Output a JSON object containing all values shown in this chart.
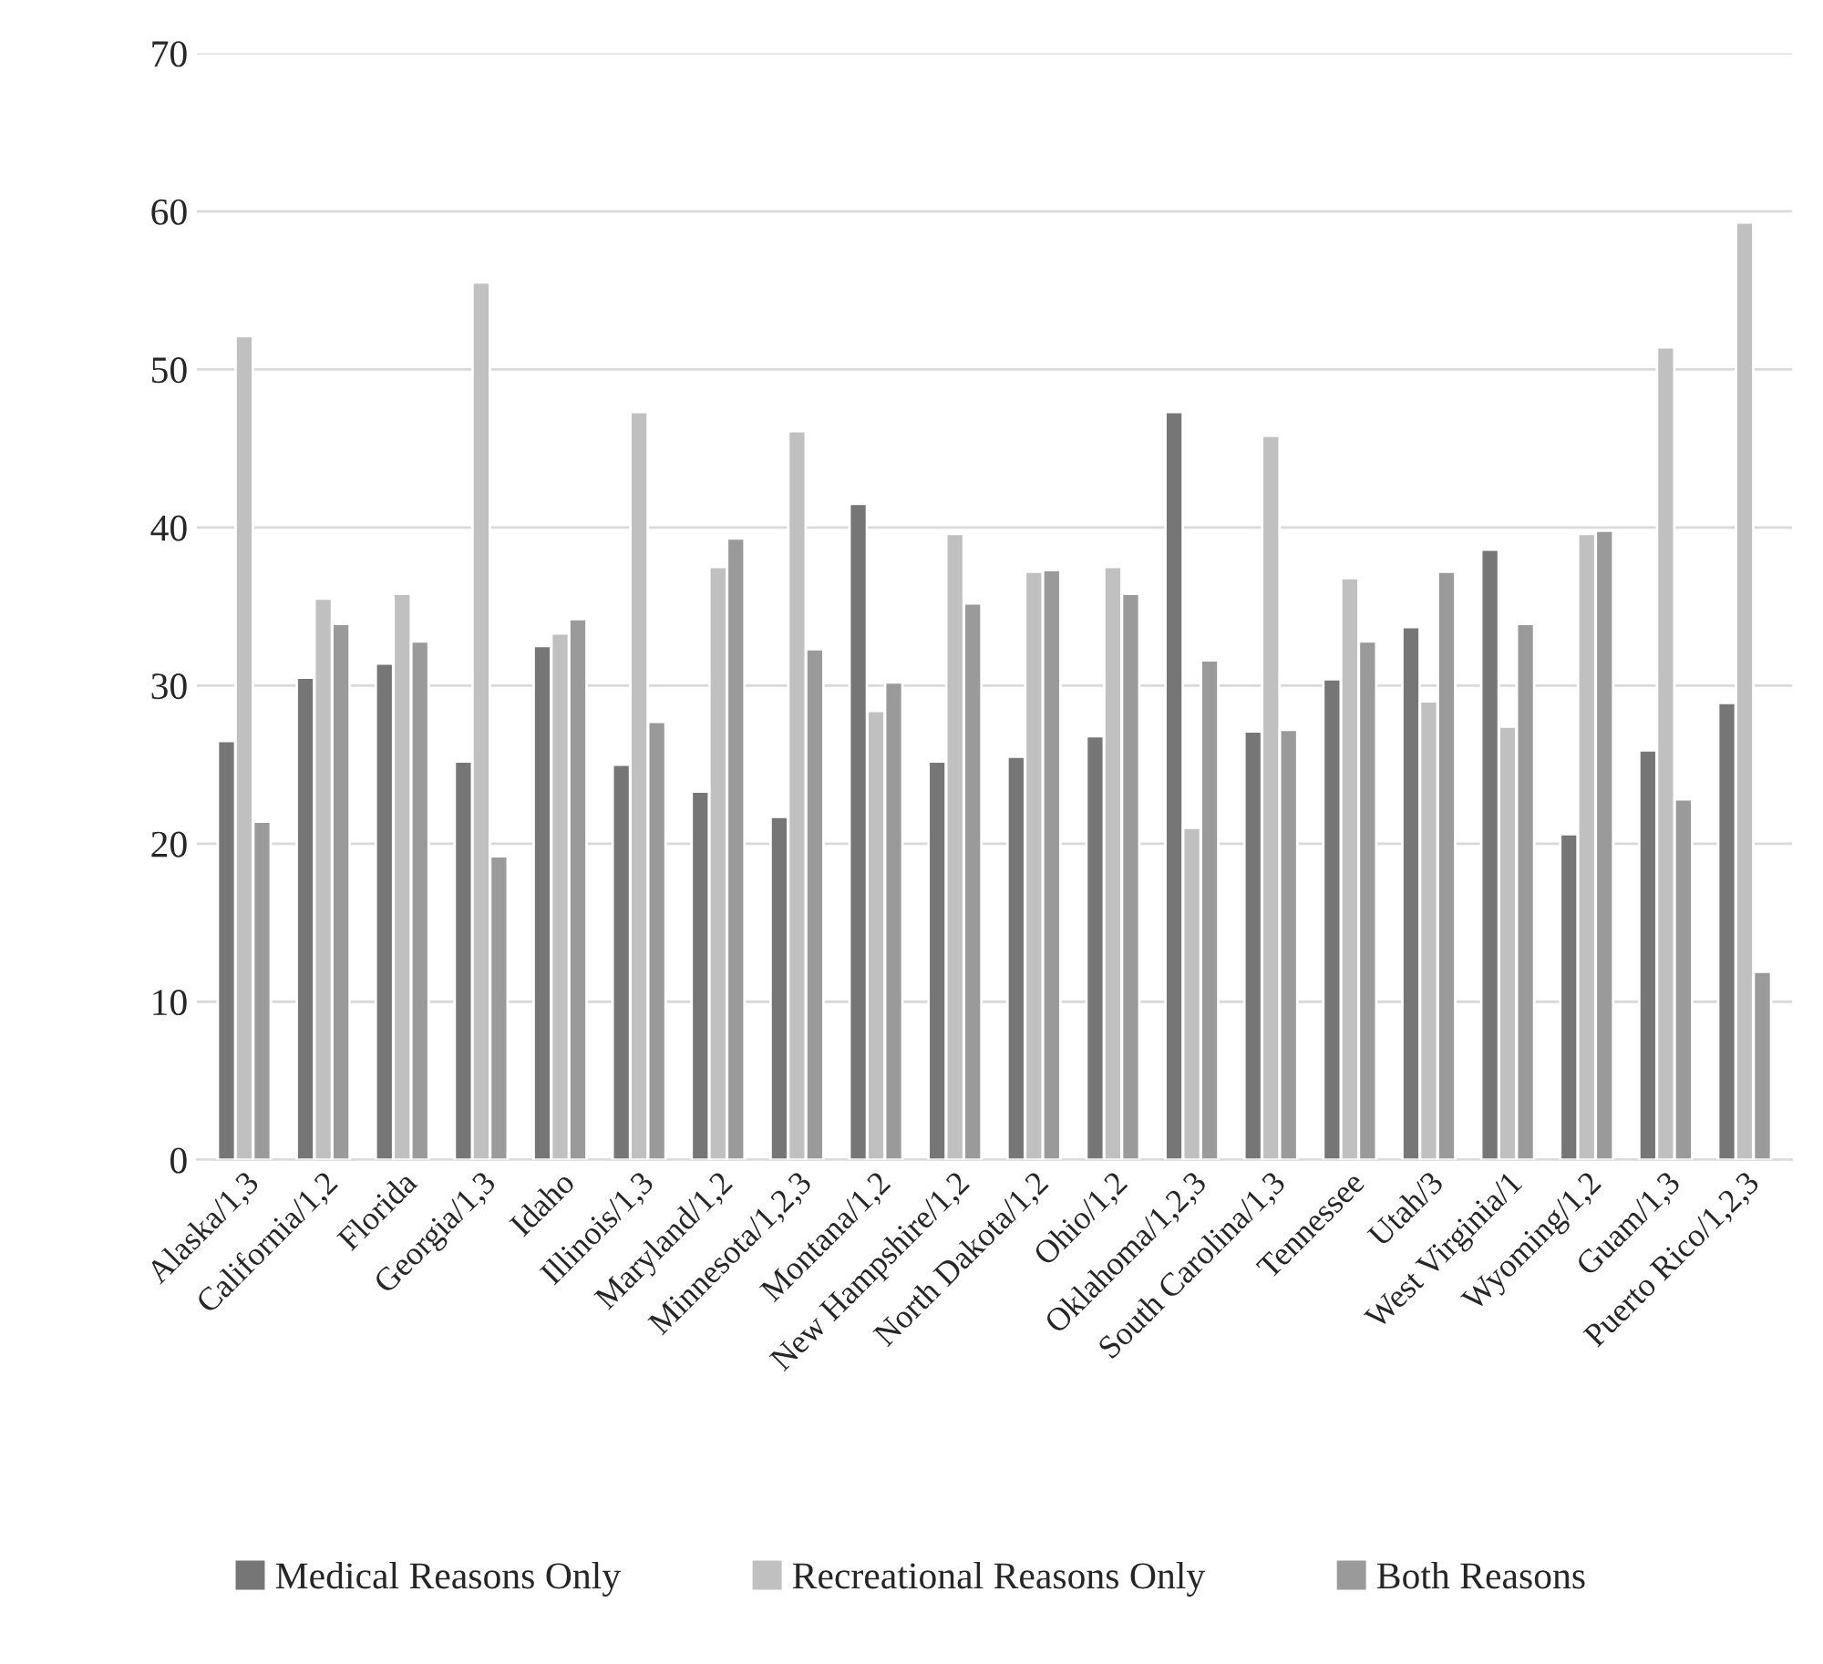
{
  "chart_data": {
    "type": "bar",
    "categories": [
      "Alaska/1,3",
      "California/1,2",
      "Florida",
      "Georgia/1,3",
      "Idaho",
      "Illinois/1,3",
      "Maryland/1,2",
      "Minnesota/1,2,3",
      "Montana/1,2",
      "New Hampshire/1,2",
      "North Dakota/1,2",
      "Ohio/1,2",
      "Oklahoma/1,2,3",
      "South Carolina/1,3",
      "Tennessee",
      "Utah/3",
      "West Virginia/1",
      "Wyoming/1,2",
      "Guam/1,3",
      "Puerto Rico/1,2,3"
    ],
    "series": [
      {
        "name": "Medical Reasons Only",
        "color": "#767676",
        "values": [
          26.5,
          30.5,
          31.4,
          25.2,
          32.5,
          25.0,
          23.3,
          21.7,
          41.5,
          25.2,
          25.5,
          26.8,
          47.3,
          27.1,
          30.4,
          33.7,
          38.6,
          20.6,
          25.9,
          28.9
        ]
      },
      {
        "name": "Recreational Reasons Only",
        "color": "#c0c0c0",
        "values": [
          52.1,
          35.5,
          35.8,
          55.5,
          33.3,
          47.3,
          37.5,
          46.1,
          28.4,
          39.6,
          37.2,
          37.5,
          21.0,
          45.8,
          36.8,
          29.0,
          27.4,
          39.6,
          51.4,
          59.3
        ]
      },
      {
        "name": "Both Reasons",
        "color": "#9a9a9a",
        "values": [
          21.4,
          33.9,
          32.8,
          19.2,
          34.2,
          27.7,
          39.3,
          32.3,
          30.2,
          35.2,
          37.3,
          35.8,
          31.6,
          27.2,
          32.8,
          37.2,
          33.9,
          39.8,
          22.8,
          11.9
        ]
      }
    ],
    "ylim": [
      0,
      70
    ],
    "yticks": [
      0,
      10,
      20,
      30,
      40,
      50,
      60,
      70
    ],
    "grid": "y",
    "legend": "bottom"
  }
}
